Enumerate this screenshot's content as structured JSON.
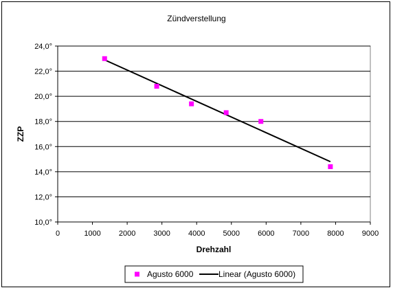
{
  "chart_data": {
    "type": "scatter",
    "title": "Zündverstellung",
    "xlabel": "Drehzahl",
    "ylabel": "ZZP",
    "xlim": [
      0,
      9000
    ],
    "ylim": [
      10,
      24
    ],
    "x_ticks": [
      0,
      1000,
      2000,
      3000,
      4000,
      5000,
      6000,
      7000,
      8000,
      9000
    ],
    "x_tick_labels": [
      "0",
      "1000",
      "2000",
      "3000",
      "4000",
      "5000",
      "6000",
      "7000",
      "8000",
      "9000"
    ],
    "y_ticks": [
      10,
      12,
      14,
      16,
      18,
      20,
      22,
      24
    ],
    "y_tick_labels": [
      "10,0°",
      "12,0°",
      "14,0°",
      "16,0°",
      "18,0°",
      "20,0°",
      "22,0°",
      "24,0°"
    ],
    "grid": "horizontal",
    "legend_position": "bottom",
    "series": [
      {
        "name": "Agusto 6000",
        "kind": "points",
        "color": "#ff00ff",
        "x": [
          1350,
          2850,
          3850,
          4850,
          5850,
          7850
        ],
        "y": [
          23.0,
          20.8,
          19.4,
          18.7,
          18.0,
          14.4
        ]
      },
      {
        "name": "Linear (Agusto 6000)",
        "kind": "trendline",
        "color": "#000000",
        "x": [
          1350,
          7850
        ],
        "y": [
          22.9,
          14.8
        ]
      }
    ]
  }
}
